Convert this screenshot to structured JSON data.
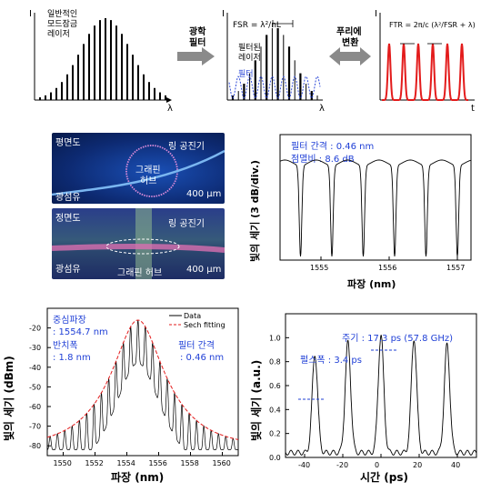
{
  "colors": {
    "blue_label": "#1f3fd6",
    "red_pulse": "#e31b1b",
    "fit_red": "#e31b1b",
    "filter_blue": "#2f4bd8"
  },
  "top_row": {
    "laser_label": [
      "일반적인",
      "모드잠금",
      "레이저"
    ],
    "arrow1_label": [
      "광학",
      "필터"
    ],
    "fsr_formula": "FSR = λ²/nL",
    "filtered_label": [
      "필터된",
      "레이저"
    ],
    "filter_label": "필터",
    "arrow2_label": [
      "푸리에",
      "변환"
    ],
    "ftr_formula": "FTR = 2π/c (λ²/FSR + λ)",
    "axis_I": "I",
    "axis_lambda": "λ",
    "axis_t": "t"
  },
  "photos": {
    "top": {
      "title": "평면도",
      "ring": "링 공진기",
      "hub": [
        "그래핀",
        "허브"
      ],
      "fiber": "광섬유",
      "scale": "400 μm"
    },
    "bottom": {
      "title": "정면도",
      "ring": "링 공진기",
      "hub": "그래핀 허브",
      "fiber": "광섬유",
      "scale": "400 μm"
    }
  },
  "chart_data": [
    {
      "type": "line",
      "ylabel": "빛의 세기 (3 dB/div.)",
      "xlabel": "파장 (nm)",
      "x_ticks": [
        1555,
        1556,
        1557
      ],
      "xlim": [
        1554.4,
        1557.2
      ],
      "annotations": [
        "필터 간격 : 0.46 nm",
        "점멸비 : 8.6 dB"
      ],
      "series": [
        {
          "dip_centers_nm": [
            1554.7,
            1555.16,
            1555.62,
            1556.08,
            1556.54,
            1557.0
          ],
          "dip_depth_dB": 8.6,
          "period_nm": 0.46
        }
      ]
    },
    {
      "type": "line",
      "ylabel": "빛의 세기 (dBm)",
      "xlabel": "파장 (nm)",
      "xlim": [
        1549,
        1561
      ],
      "ylim": [
        -85,
        -10
      ],
      "x_ticks": [
        1550,
        1552,
        1554,
        1556,
        1558,
        1560
      ],
      "y_ticks": [
        -20,
        -30,
        -40,
        -50,
        -60,
        -70,
        -80
      ],
      "legend": [
        "Data",
        "Sech fitting"
      ],
      "annotations": [
        "중심파장",
        ": 1554.7 nm",
        "반치폭",
        ": 1.8 nm",
        "필터 간격",
        ": 0.46 nm"
      ],
      "series": [
        {
          "name": "Sech fitting",
          "center_nm": 1554.7,
          "fwhm_nm": 1.8,
          "peak_dBm": -16,
          "floor_dBm": -80,
          "line_spacing_nm": 0.46
        }
      ]
    },
    {
      "type": "line",
      "ylabel": "빛의 세기 (a.u.)",
      "xlabel": "시간 (ps)",
      "xlim": [
        -50,
        50
      ],
      "ylim": [
        0,
        1.2
      ],
      "x_ticks": [
        -40,
        -20,
        0,
        20,
        40
      ],
      "y_ticks": [
        0.0,
        0.2,
        0.4,
        0.6,
        0.8,
        1.0
      ],
      "annotations": [
        "주기 : 17.3 ps (57.8 GHz)",
        "펄스폭 : 3.4 ps"
      ],
      "series": [
        {
          "pulse_centers_ps": [
            -34.6,
            -17.3,
            0,
            17.3,
            34.6
          ],
          "peaks": [
            0.82,
            0.92,
            0.98,
            0.95,
            0.9
          ],
          "pulse_width_ps": 3.4
        }
      ]
    }
  ]
}
